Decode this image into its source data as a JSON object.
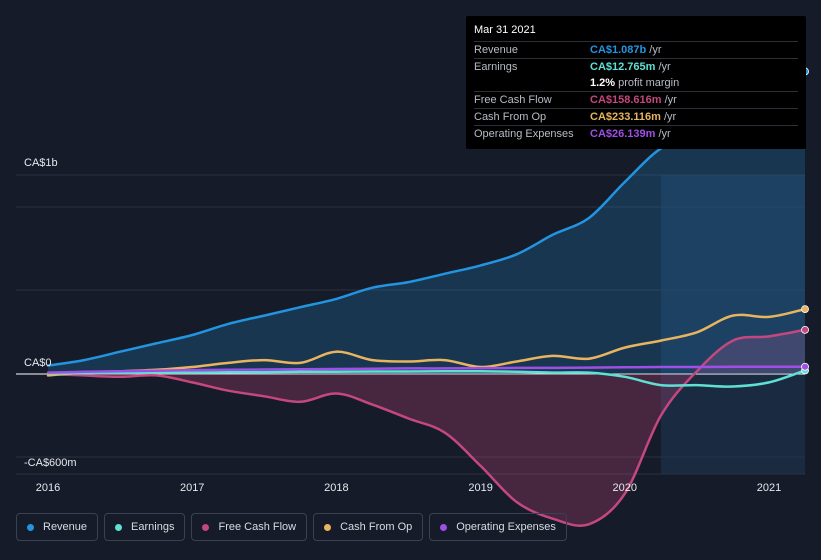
{
  "chart_data": {
    "type": "line",
    "title": "",
    "xlabel": "",
    "ylabel": "",
    "x_ticks": [
      "2016",
      "2017",
      "2018",
      "2019",
      "2020",
      "2021"
    ],
    "y_labels": {
      "top": "CA$1b",
      "zero": "CA$0",
      "bottom": "-CA$600m"
    },
    "ylim": [
      -600,
      1200
    ],
    "units": "CA$m",
    "x": [
      2016.0,
      2016.25,
      2016.5,
      2016.75,
      2017.0,
      2017.25,
      2017.5,
      2017.75,
      2018.0,
      2018.25,
      2018.5,
      2018.75,
      2019.0,
      2019.25,
      2019.5,
      2019.75,
      2020.0,
      2020.25,
      2020.5,
      2020.75,
      2021.0,
      2021.25
    ],
    "series": [
      {
        "name": "Revenue",
        "color": "#2394df",
        "values": [
          30,
          50,
          80,
          110,
          140,
          180,
          210,
          240,
          270,
          310,
          330,
          360,
          390,
          430,
          500,
          560,
          690,
          810,
          860,
          980,
          990,
          1087
        ]
      },
      {
        "name": "Earnings",
        "color": "#5fe0d2",
        "values": [
          2,
          3,
          4,
          5,
          5,
          6,
          7,
          8,
          8,
          9,
          9,
          10,
          10,
          8,
          5,
          5,
          -10,
          -40,
          -40,
          -45,
          -30,
          12.765
        ]
      },
      {
        "name": "Free Cash Flow",
        "color": "#c4477f",
        "values": [
          0,
          -5,
          -10,
          -5,
          -30,
          -60,
          -80,
          -100,
          -70,
          -110,
          -160,
          -210,
          -330,
          -460,
          -520,
          -540,
          -430,
          -150,
          10,
          120,
          135,
          158.616
        ]
      },
      {
        "name": "Cash From Op",
        "color": "#e8b45f",
        "values": [
          -5,
          5,
          10,
          15,
          25,
          40,
          50,
          40,
          80,
          50,
          45,
          50,
          25,
          45,
          65,
          55,
          95,
          120,
          150,
          210,
          205,
          233.116
        ]
      },
      {
        "name": "Operating Expenses",
        "color": "#a04fe6",
        "values": [
          5,
          8,
          10,
          12,
          14,
          15,
          16,
          17,
          18,
          19,
          20,
          20,
          21,
          22,
          22,
          23,
          24,
          25,
          25,
          26,
          26,
          26.139
        ]
      }
    ],
    "highlight_from": 2020.25
  },
  "tooltip": {
    "date": "Mar 31 2021",
    "rows": [
      {
        "name": "Revenue",
        "value": "CA$1.087b",
        "unit": "/yr",
        "color": "#2394df"
      },
      {
        "name": "Earnings",
        "value": "CA$12.765m",
        "unit": "/yr",
        "color": "#5fe0d2"
      },
      {
        "name": "",
        "value": "1.2%",
        "unit": "profit margin",
        "color": "#ffffff"
      },
      {
        "name": "Free Cash Flow",
        "value": "CA$158.616m",
        "unit": "/yr",
        "color": "#c4477f"
      },
      {
        "name": "Cash From Op",
        "value": "CA$233.116m",
        "unit": "/yr",
        "color": "#e8b45f"
      },
      {
        "name": "Operating Expenses",
        "value": "CA$26.139m",
        "unit": "/yr",
        "color": "#a04fe6"
      }
    ]
  },
  "legend": [
    {
      "label": "Revenue",
      "color": "#2394df"
    },
    {
      "label": "Earnings",
      "color": "#5fe0d2"
    },
    {
      "label": "Free Cash Flow",
      "color": "#c4477f"
    },
    {
      "label": "Cash From Op",
      "color": "#e8b45f"
    },
    {
      "label": "Operating Expenses",
      "color": "#a04fe6"
    }
  ]
}
